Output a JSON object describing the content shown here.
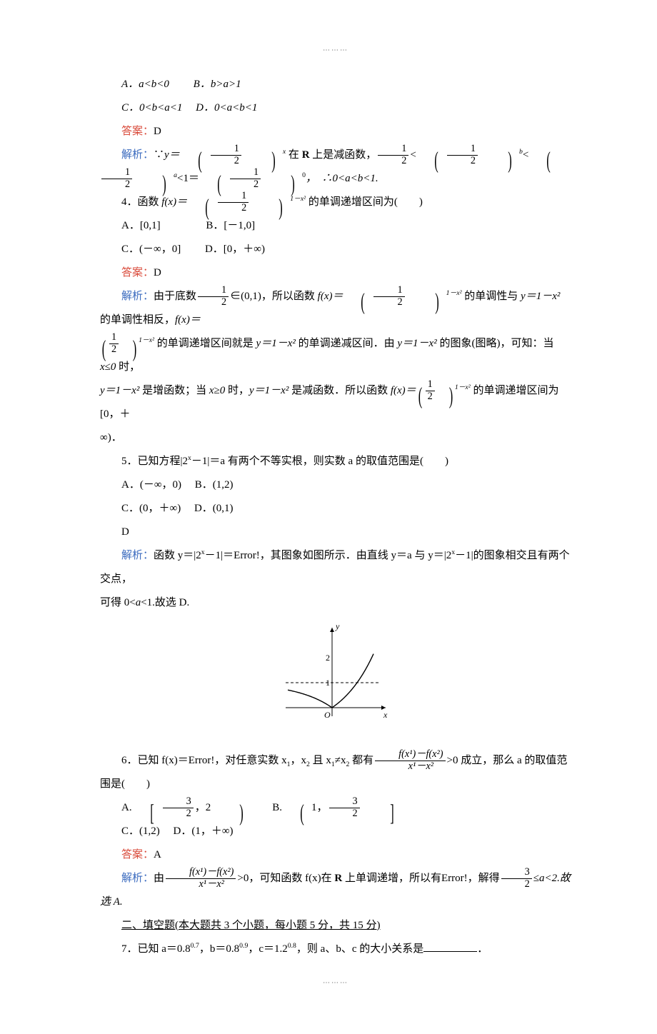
{
  "dots": "⋯⋯⋯",
  "q3": {
    "A": "A．a<b<0",
    "B": "B．b>a>1",
    "C": "C．0<b<a<1",
    "D": "D．0<a<b<1",
    "ans_label": "答案：",
    "ans": "D",
    "expl_label": "解析：",
    "expl_text_1": "∵",
    "expl_text_2": "在 ",
    "expl_R": "R",
    "expl_text_3": " 上是减函数，",
    "expl_text_4": "，　∴0<a<b<1."
  },
  "q4": {
    "stem1": "4．函数 ",
    "stem2": " 的单调递增区间为(　　)",
    "A": "A．[0,1]",
    "B": "B．[－1,0]",
    "C": "C．(－∞，0]",
    "D": "D．[0，＋∞)",
    "ans_label": "答案：",
    "ans": "D",
    "expl_label": "解析：",
    "expl_t1": "由于底数",
    "expl_t2": "∈(0,1)，所以函数 ",
    "expl_t3": " 的单调性与 ",
    "expl_t4": " 的单调性相反，",
    "expl_t4b": "＝",
    "expl_t5": " 的单调递增区间就是 ",
    "expl_t6": " 的单调递减区间．由 ",
    "expl_t7": " 的图象(图略)，可知：当 ",
    "expl_t8": " 时，",
    "expl_t9": " 是增函数；当 ",
    "expl_t10": " 时，",
    "expl_t11": " 是减函数．所以函数 ",
    "expl_t12": " 的单调递增区间为[0，＋",
    "expl_t13": "∞)．"
  },
  "q5": {
    "stem": "5．已知方程|2<sup>x</sup>－1|＝a 有两个不等实根，则实数 a 的取值范围是(　　)",
    "A": "A．(－∞，0)",
    "B": "B．(1,2)",
    "C": "C．(0，＋∞)",
    "D": "D．(0,1)",
    "ans_label": "答案：",
    "ans": "D",
    "expl_label": "解析：",
    "expl": "函数 y＝|2<sup>x</sup>－1|＝Error!，其图象如图所示．由直线 y＝a 与 y＝|2<sup>x</sup>－1|的图象相交且有两个交点，",
    "expl2_pre": "可得 0<",
    "expl2_mid": "<1.故选 D.",
    "graph": {
      "width": 170,
      "height": 150,
      "colors": {
        "stroke": "#000000",
        "bg": "#ffffff"
      },
      "axes": {
        "xmin": -60,
        "xmax": 70,
        "ymin": -15,
        "ymax": 110
      },
      "dash_y": 1,
      "y_tick": 2,
      "labels": {
        "x": "x",
        "y": "y",
        "origin": "O",
        "tick1": "1",
        "tick2": "2"
      }
    }
  },
  "q6": {
    "stem1": "6．已知 f(x)＝Error!，对任意实数 x",
    "stem2": "，x",
    "stem3": " 且 x",
    "stem4": "≠x",
    "stem5": " 都有",
    "stem6": ">0 成立，那么 a 的取值范围是(　　)",
    "A_l": "A.",
    "B_l": "B.",
    "C": "C．(1,2)",
    "D": "D．(1，＋∞)",
    "ans_label": "答案：",
    "ans": "A",
    "expl_label": "解析：",
    "expl_t1": "由",
    "expl_t2": ">0，可知函数 f(x)在 ",
    "expl_R": "R",
    "expl_t3": " 上单调递增，所以有Error!，解得",
    "expl_t4": "≤a<2.故选 A."
  },
  "sec2": {
    "title": "二、填空题(本大题共 3 个小题，每小题 5 分，共 15 分)"
  },
  "q7": {
    "stem1": "7．已知 a＝0.8",
    "e1": "0.7",
    "stem2": "，b＝0.8",
    "e2": "0.9",
    "stem3": "，c＝1.2",
    "e3": "0.8",
    "stem4": "，则 a、b、c 的大小关系是",
    "stem5": "．"
  },
  "math": {
    "half_num": "1",
    "half_den": "2",
    "three_num": "3",
    "two_den": "2",
    "y_eq": "y＝",
    "fx_eq": "f(x)＝",
    "exp_x": "x",
    "exp_b": "b",
    "exp_a": "a",
    "exp_zero": "0",
    "exp_1mx2": "1－x²",
    "one_minus_x2": "y＝1－x²",
    "x_le_0": "x≤0",
    "x_ge_0": "x≥0",
    "lt": "<",
    "lt1eq": "<1＝",
    "frac_num": "f(x¹)－f(x²)",
    "frac_den": "x¹－x²",
    "comma2": "，2",
    "one_comma": "1，"
  }
}
